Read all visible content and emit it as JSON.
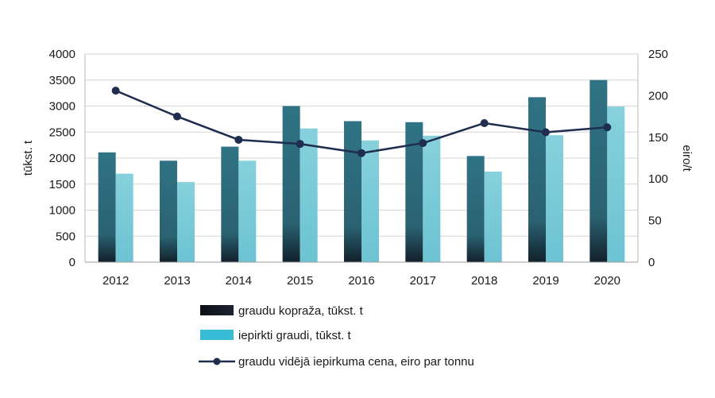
{
  "chart_data": {
    "type": "bar",
    "categories": [
      "2012",
      "2013",
      "2014",
      "2015",
      "2016",
      "2017",
      "2018",
      "2019",
      "2020"
    ],
    "series": [
      {
        "name": "graudu kopraža, tūkst. t",
        "type": "bar",
        "axis": "left",
        "color": "#2e6f80",
        "values": [
          2110,
          1950,
          2220,
          3000,
          2710,
          2690,
          2040,
          3170,
          3500
        ]
      },
      {
        "name": "iepirkti graudi, tūkst. t",
        "type": "bar",
        "axis": "left",
        "color": "#82ced9",
        "values": [
          1700,
          1540,
          1950,
          2570,
          2340,
          2430,
          1740,
          2440,
          2990
        ]
      },
      {
        "name": "graudu vidējā iepirkuma cena, eiro par tonnu",
        "type": "line",
        "axis": "right",
        "color": "#1f2d4e",
        "values": [
          206,
          175,
          147,
          142,
          131,
          143,
          167,
          156,
          162
        ]
      }
    ],
    "ylabel": "tūkst. t",
    "ylim": [
      0,
      4000
    ],
    "yticks": [
      "0",
      "500",
      "1000",
      "1500",
      "2000",
      "2500",
      "3000",
      "3500",
      "4000"
    ],
    "y2label": "eiro/t",
    "y2lim": [
      0,
      250
    ],
    "y2ticks": [
      "0",
      "50",
      "100",
      "150",
      "200",
      "250"
    ],
    "grid": true,
    "legend_position": "bottom",
    "legend": [
      {
        "label": "graudu kopraža, tūkst. t",
        "swatch_color": "#14181f"
      },
      {
        "label": "iepirkti graudi, tūkst. t",
        "swatch_color": "#38bcd6"
      },
      {
        "label": "graudu vidējā iepirkuma cena, eiro par tonnu",
        "swatch_color": "#1f2d4e"
      }
    ]
  }
}
